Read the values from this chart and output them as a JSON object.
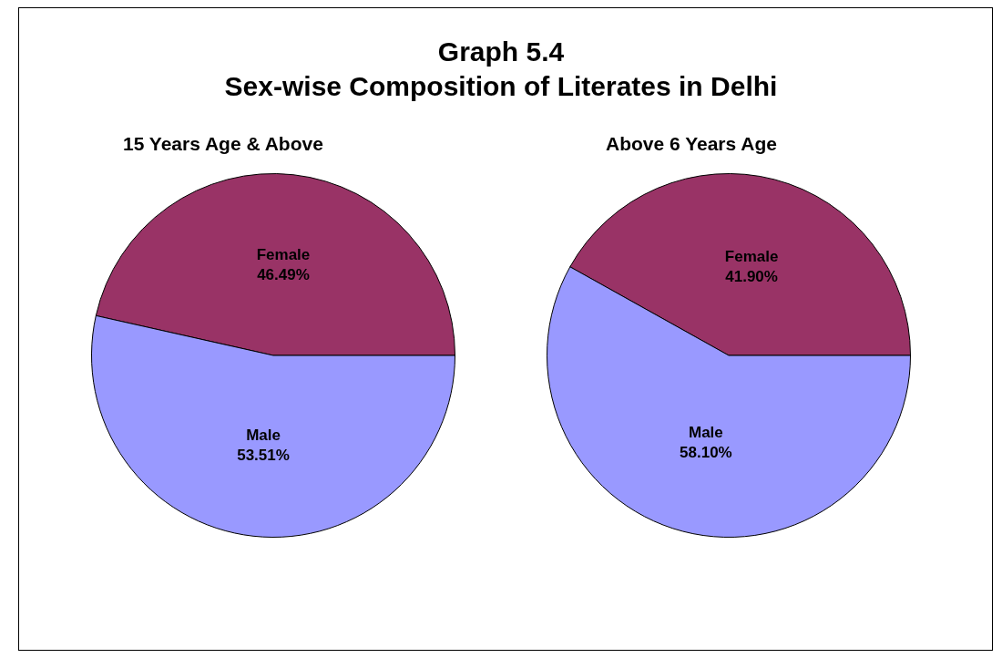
{
  "chart_data": [
    {
      "type": "other",
      "title": "Graph 5.4",
      "subtitle": "Sex-wise Composition of Literates in Delhi"
    },
    {
      "type": "pie",
      "title": "15 Years Age & Above",
      "categories": [
        "Female",
        "Male"
      ],
      "values": [
        46.49,
        53.51
      ],
      "colors": [
        "#993366",
        "#9999ff"
      ],
      "value_labels": [
        "46.49%",
        "53.51%"
      ],
      "legend": false
    },
    {
      "type": "pie",
      "title": "Above 6 Years Age",
      "categories": [
        "Female",
        "Male"
      ],
      "values": [
        41.9,
        58.1
      ],
      "colors": [
        "#993366",
        "#9999ff"
      ],
      "value_labels": [
        "41.90%",
        "58.10%"
      ],
      "legend": false
    }
  ]
}
